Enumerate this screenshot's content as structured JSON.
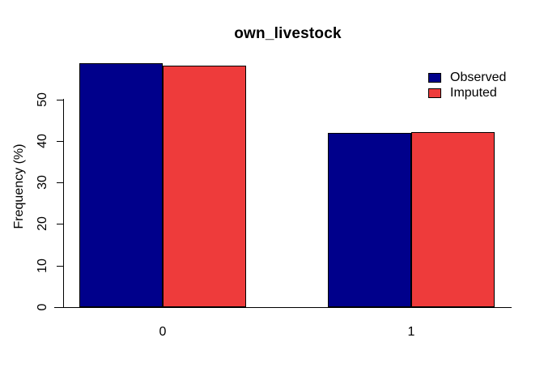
{
  "chart_data": {
    "type": "bar",
    "title": "own_livestock",
    "ylabel": "Frequency (%)",
    "xlabel": "",
    "categories": [
      "0",
      "1"
    ],
    "series": [
      {
        "name": "Observed",
        "color": "#00008B",
        "values": [
          58.6,
          42.0
        ]
      },
      {
        "name": "Imputed",
        "color": "#EE3B3B",
        "values": [
          58.1,
          42.2
        ]
      }
    ],
    "yticks": [
      0,
      10,
      20,
      30,
      40,
      50
    ],
    "ylim": [
      0,
      60
    ],
    "grid": false,
    "legend_position": "topright",
    "axis_color": "#000000",
    "bar_border_color": "#000000",
    "background": "#FFFFFF"
  }
}
